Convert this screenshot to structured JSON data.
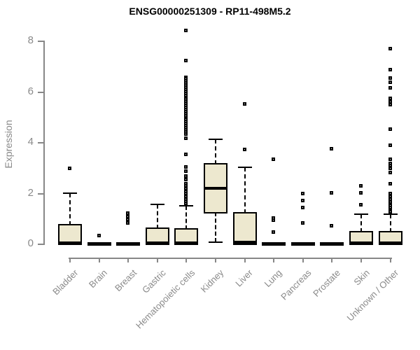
{
  "chart_data": {
    "type": "boxplot",
    "title": "ENSG00000251309 - RP11-498M5.2",
    "xlabel": "",
    "ylabel": "Expression",
    "yticks": [
      0,
      2,
      4,
      6,
      8
    ],
    "ylim": [
      0,
      8.6
    ],
    "grid": false,
    "legend": "none",
    "categories": [
      "Bladder",
      "Brain",
      "Breast",
      "Gastric",
      "Hematopoietic cells",
      "Kidney",
      "Liver",
      "Lung",
      "Pancreas",
      "Prostate",
      "Skin",
      "Unknown / Other"
    ],
    "boxes": [
      {
        "name": "Bladder",
        "q1": 0,
        "median": 0.03,
        "q3": 0.72,
        "whisker_low": 0,
        "whisker_high": 2.0,
        "outliers": [
          2.95
        ]
      },
      {
        "name": "Brain",
        "q1": 0,
        "median": 0,
        "q3": 0,
        "whisker_low": 0,
        "whisker_high": 0,
        "outliers": [
          0.3
        ]
      },
      {
        "name": "Breast",
        "q1": 0,
        "median": 0,
        "q3": 0,
        "whisker_low": 0,
        "whisker_high": 0,
        "outliers": [
          1.2,
          1.05,
          0.95,
          0.8
        ]
      },
      {
        "name": "Gastric",
        "q1": 0,
        "median": 0.03,
        "q3": 0.58,
        "whisker_low": 0,
        "whisker_high": 1.55,
        "outliers": []
      },
      {
        "name": "Hematopoietic cells",
        "q1": 0,
        "median": 0.03,
        "q3": 0.55,
        "whisker_low": 0,
        "whisker_high": 1.5,
        "outliers": [
          8.4,
          7.2,
          6.55,
          6.47,
          6.39,
          6.31,
          6.23,
          6.15,
          6.07,
          5.99,
          5.91,
          5.83,
          5.75,
          5.67,
          5.59,
          5.51,
          5.43,
          5.35,
          5.27,
          5.19,
          5.11,
          5.03,
          4.95,
          4.87,
          4.79,
          4.71,
          4.63,
          4.55,
          4.47,
          4.39,
          4.31,
          4.15,
          3.5,
          3.0,
          2.85,
          2.65,
          2.5,
          2.35,
          2.25,
          2.15,
          2.05,
          1.95,
          1.85,
          1.75,
          1.65,
          1.58
        ]
      },
      {
        "name": "Kidney",
        "q1": 1.25,
        "median": 2.18,
        "q3": 3.12,
        "whisker_low": 0.05,
        "whisker_high": 4.12,
        "outliers": []
      },
      {
        "name": "Liver",
        "q1": 0,
        "median": 0.05,
        "q3": 1.2,
        "whisker_low": 0,
        "whisker_high": 3.0,
        "outliers": [
          5.5,
          3.7
        ]
      },
      {
        "name": "Lung",
        "q1": 0,
        "median": 0,
        "q3": 0,
        "whisker_low": 0,
        "whisker_high": 0,
        "outliers": [
          3.3,
          1.0,
          0.92,
          0.45
        ]
      },
      {
        "name": "Pancreas",
        "q1": 0,
        "median": 0,
        "q3": 0,
        "whisker_low": 0,
        "whisker_high": 0,
        "outliers": [
          1.95,
          1.68,
          1.4,
          0.8
        ]
      },
      {
        "name": "Prostate",
        "q1": 0,
        "median": 0,
        "q3": 0,
        "whisker_low": 0,
        "whisker_high": 0,
        "outliers": [
          3.72,
          2.0,
          0.7
        ]
      },
      {
        "name": "Skin",
        "q1": 0,
        "median": 0.03,
        "q3": 0.45,
        "whisker_low": 0,
        "whisker_high": 1.15,
        "outliers": [
          1.52,
          2.0,
          2.25
        ]
      },
      {
        "name": "Unknown / Other",
        "q1": 0,
        "median": 0.03,
        "q3": 0.45,
        "whisker_low": 0,
        "whisker_high": 1.15,
        "outliers": [
          7.67,
          6.85,
          6.5,
          6.35,
          6.12,
          5.7,
          5.58,
          5.45,
          4.5,
          3.86,
          3.3,
          3.15,
          3.05,
          2.95,
          2.8,
          2.35,
          1.95,
          1.85,
          1.75,
          1.62,
          1.5,
          1.4,
          1.3,
          1.24
        ]
      }
    ],
    "colors": {
      "box_fill": "#ede8cf",
      "box_border": "#000000",
      "median": "#000000",
      "whisker": "#000000",
      "outlier": "#000000",
      "axis": "#878787",
      "axis_text": "#8a8a8a",
      "title_text": "#000000"
    }
  }
}
